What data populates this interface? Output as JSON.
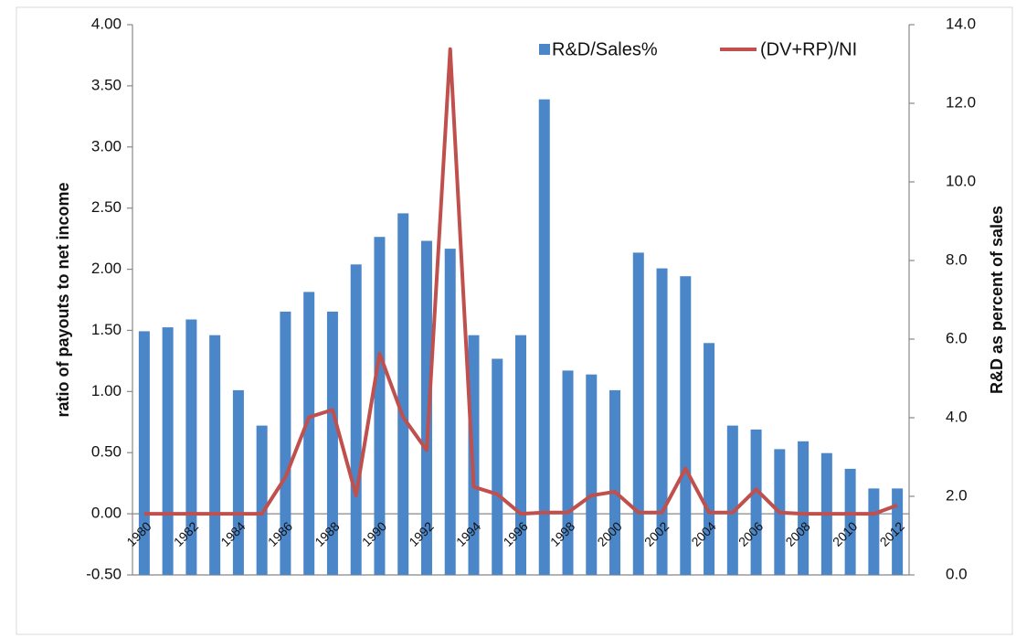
{
  "chart_data": {
    "type": "bar_line",
    "categories": [
      "1980",
      null,
      "1982",
      null,
      "1984",
      null,
      "1986",
      null,
      "1988",
      null,
      "1990",
      null,
      "1992",
      null,
      "1994",
      null,
      "1996",
      null,
      "1998",
      null,
      "2000",
      null,
      "2002",
      null,
      "2004",
      null,
      "2006",
      null,
      "2008",
      null,
      "2010",
      null,
      "2012"
    ],
    "series": [
      {
        "name": "R&D/Sales%",
        "color": "#4a86c8",
        "type": "bar",
        "axis": "y2",
        "values": [
          6.2,
          6.3,
          6.5,
          6.1,
          4.7,
          3.8,
          6.7,
          7.2,
          6.7,
          7.9,
          8.6,
          9.2,
          8.5,
          8.3,
          6.1,
          5.5,
          6.1,
          12.1,
          5.2,
          5.1,
          4.7,
          8.2,
          7.8,
          7.6,
          5.9,
          3.8,
          3.7,
          3.2,
          3.4,
          3.1,
          2.7,
          2.2,
          2.2
        ]
      },
      {
        "name": "(DV+RP)/NI",
        "color": "#c0504d",
        "type": "line",
        "axis": "y",
        "values": [
          0,
          0,
          0,
          0,
          0,
          0,
          0.3,
          0.79,
          0.85,
          0.15,
          1.31,
          0.79,
          0.52,
          3.8,
          0.22,
          0.16,
          0,
          0.01,
          0.01,
          0.15,
          0.18,
          0.01,
          0.01,
          0.37,
          0.01,
          0.01,
          0.2,
          0.01,
          0,
          0,
          0,
          0,
          0.07
        ]
      }
    ],
    "ylabel": "ratio of payouts to net income",
    "y2label": "R&D as percent of sales",
    "ylim": [
      -0.5,
      4.0
    ],
    "yticks": [
      {
        "value": -0.5,
        "label": "-0.50"
      },
      {
        "value": 0,
        "label": "0.00"
      },
      {
        "value": 0.5,
        "label": "0.50"
      },
      {
        "value": 1.0,
        "label": "1.00"
      },
      {
        "value": 1.5,
        "label": "1.50"
      },
      {
        "value": 2.0,
        "label": "2.00"
      },
      {
        "value": 2.5,
        "label": "2.50"
      },
      {
        "value": 3.0,
        "label": "3.00"
      },
      {
        "value": 3.5,
        "label": "3.50"
      },
      {
        "value": 4.0,
        "label": "4.00"
      }
    ],
    "y2lim": [
      0,
      14
    ],
    "y2ticks": [
      {
        "value": 0,
        "label": "0.0"
      },
      {
        "value": 2,
        "label": "2.0"
      },
      {
        "value": 4,
        "label": "4.0"
      },
      {
        "value": 6,
        "label": "6.0"
      },
      {
        "value": 8,
        "label": "8.0"
      },
      {
        "value": 10,
        "label": "10.0"
      },
      {
        "value": 12,
        "label": "12.0"
      },
      {
        "value": 14,
        "label": "14.0"
      }
    ],
    "legend": "top-right"
  }
}
